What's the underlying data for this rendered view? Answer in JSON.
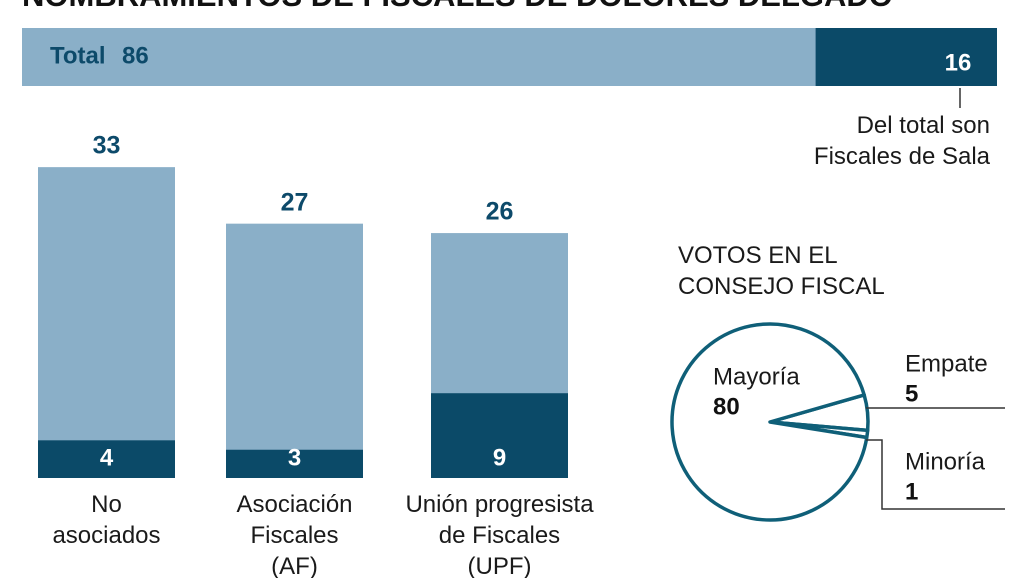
{
  "chart_data": [
    {
      "type": "total-bar",
      "title": "NOMBRAMIENTOS DE FISCALES DE DOLORES DELGADO",
      "label": "Total",
      "value": 86,
      "color": "#8aafc8",
      "highlight": {
        "value": 16,
        "color": "#0b4a68",
        "annotation": "Del total son\nFiscales de Sala"
      }
    },
    {
      "type": "bar",
      "categories": [
        "No\nasociados",
        "Asociación\nFiscales\n(AF)",
        "Unión progresista\nde Fiscales\n(UPF)"
      ],
      "series": [
        {
          "color": "#8aafc8",
          "values": [
            33,
            27,
            26
          ]
        },
        {
          "color": "#0b4a68",
          "values": [
            4,
            3,
            9
          ]
        }
      ]
    },
    {
      "type": "pie",
      "title": "VOTOS EN EL\nCONSEJO FISCAL",
      "categories": [
        "Mayoría",
        "Empate",
        "Minoría"
      ],
      "values": [
        80,
        5,
        1
      ],
      "color": "#ffffff",
      "stroke": "#0f5f78"
    }
  ]
}
